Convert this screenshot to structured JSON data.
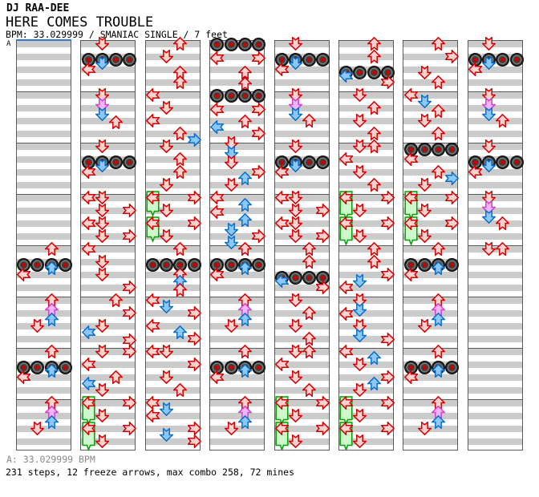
{
  "header": {
    "artist": "DJ RAA-DEE",
    "song_title": "HERE COMES TROUBLE",
    "info_line": "BPM: 33.029999 / SMANIAC SINGLE / 7 feet"
  },
  "footer": {
    "bpm_line": "A: 33.029999 BPM",
    "stats_line": "231 steps, 12 freeze arrows, max combo 258, 72 mines"
  },
  "colors": {
    "stripe_gray": "#cbcbcb",
    "measure_border": "#5a5a5a",
    "section_marker_blue": "#3377cc",
    "note_red_border": "#d40000",
    "note_red_fill": "#ffd2d2",
    "note_blue_border": "#0a6ecc",
    "note_blue_fill": "#8cc8f8",
    "note_purple_border": "#cc44cc",
    "note_purple_fill": "#f4b4f8",
    "freeze_border": "#00a000",
    "freeze_fill": "#ccf8cc",
    "mine_center_red": "#c40000"
  },
  "chart_data": {
    "type": "ddr-step-chart",
    "section_label": "A",
    "lanes": [
      "left",
      "down",
      "up",
      "right"
    ],
    "rows_per_measure": 8,
    "measures_per_column": 8,
    "note_kinds": {
      "r": "red-note",
      "b": "blue-note",
      "p": "purple-note",
      "m": "mine-row-all-4-lanes",
      "f": "freeze-arrow-with-length-in-rows"
    },
    "columns": [
      [
        [
          32.5,
          2,
          "r"
        ],
        [
          35,
          -1,
          "m"
        ],
        [
          35.5,
          2,
          "b"
        ],
        [
          36.5,
          0,
          "r"
        ],
        [
          40.5,
          2,
          "r"
        ],
        [
          42,
          2,
          "p"
        ],
        [
          43.5,
          2,
          "b"
        ],
        [
          44.5,
          1,
          "r"
        ],
        [
          48.5,
          2,
          "r"
        ],
        [
          51,
          -1,
          "m"
        ],
        [
          51.5,
          2,
          "b"
        ],
        [
          52.5,
          0,
          "r"
        ],
        [
          56.5,
          2,
          "r"
        ],
        [
          58,
          2,
          "p"
        ],
        [
          59.5,
          2,
          "b"
        ],
        [
          60.5,
          1,
          "r"
        ]
      ],
      [
        [
          0.5,
          1,
          "r"
        ],
        [
          3,
          -1,
          "m"
        ],
        [
          3.5,
          1,
          "b"
        ],
        [
          4.5,
          0,
          "r"
        ],
        [
          8.5,
          1,
          "r"
        ],
        [
          10,
          1,
          "p"
        ],
        [
          11.5,
          1,
          "b"
        ],
        [
          12.8,
          2,
          "r"
        ],
        [
          16.5,
          1,
          "r"
        ],
        [
          19,
          -1,
          "m"
        ],
        [
          19.5,
          1,
          "b"
        ],
        [
          20.5,
          0,
          "r"
        ],
        [
          24.5,
          0,
          "r"
        ],
        [
          24.5,
          1,
          "r"
        ],
        [
          26.5,
          1,
          "r"
        ],
        [
          26.5,
          3,
          "r"
        ],
        [
          28.5,
          0,
          "r"
        ],
        [
          28.5,
          1,
          "r"
        ],
        [
          30.5,
          1,
          "r"
        ],
        [
          30.5,
          3,
          "r"
        ],
        [
          32.5,
          0,
          "r"
        ],
        [
          34.5,
          1,
          "r"
        ],
        [
          36.5,
          1,
          "r"
        ],
        [
          38.5,
          3,
          "r"
        ],
        [
          40.5,
          2,
          "r"
        ],
        [
          42.5,
          3,
          "r"
        ],
        [
          44.5,
          1,
          "r"
        ],
        [
          45.5,
          0,
          "b"
        ],
        [
          46.8,
          3,
          "r"
        ],
        [
          48.5,
          1,
          "r"
        ],
        [
          48.5,
          3,
          "r"
        ],
        [
          50.5,
          0,
          "r"
        ],
        [
          52.5,
          2,
          "r"
        ],
        [
          53.5,
          0,
          "b"
        ],
        [
          54.5,
          1,
          "r"
        ],
        [
          56.5,
          0,
          "f",
          3
        ],
        [
          56.5,
          3,
          "r"
        ],
        [
          58.5,
          1,
          "r"
        ],
        [
          60.5,
          0,
          "f",
          3
        ],
        [
          60.5,
          3,
          "r"
        ],
        [
          62.5,
          1,
          "r"
        ]
      ],
      [
        [
          0.5,
          2,
          "r"
        ],
        [
          2.5,
          1,
          "r"
        ],
        [
          5,
          2,
          "r"
        ],
        [
          6.5,
          2,
          "r"
        ],
        [
          8.5,
          0,
          "r"
        ],
        [
          10.5,
          1,
          "r"
        ],
        [
          12.5,
          0,
          "r"
        ],
        [
          14.5,
          2,
          "r"
        ],
        [
          15.5,
          3,
          "b"
        ],
        [
          16.5,
          1,
          "r"
        ],
        [
          18.5,
          2,
          "r"
        ],
        [
          20.5,
          2,
          "r"
        ],
        [
          22.5,
          1,
          "r"
        ],
        [
          24.5,
          0,
          "f",
          2.5
        ],
        [
          24.5,
          3,
          "r"
        ],
        [
          26.5,
          1,
          "r"
        ],
        [
          28.5,
          0,
          "f",
          2.5
        ],
        [
          28.5,
          3,
          "r"
        ],
        [
          30.5,
          1,
          "r"
        ],
        [
          32.5,
          2,
          "r"
        ],
        [
          35,
          -1,
          "m"
        ],
        [
          36.5,
          2,
          "r"
        ],
        [
          37.7,
          2,
          "b"
        ],
        [
          38.9,
          2,
          "r"
        ],
        [
          40.5,
          0,
          "r"
        ],
        [
          41.5,
          1,
          "b"
        ],
        [
          42.5,
          3,
          "r"
        ],
        [
          44.5,
          0,
          "r"
        ],
        [
          45.5,
          2,
          "b"
        ],
        [
          46.5,
          3,
          "r"
        ],
        [
          48.5,
          0,
          "r"
        ],
        [
          48.5,
          1,
          "r"
        ],
        [
          50.5,
          3,
          "r"
        ],
        [
          52.5,
          1,
          "r"
        ],
        [
          54.5,
          2,
          "r"
        ],
        [
          56.5,
          0,
          "r"
        ],
        [
          57.5,
          1,
          "b"
        ],
        [
          58.5,
          0,
          "r"
        ],
        [
          60.5,
          3,
          "r"
        ],
        [
          61.5,
          1,
          "b"
        ],
        [
          62.5,
          3,
          "r"
        ]
      ],
      [
        [
          0.7,
          -1,
          "m"
        ],
        [
          2.8,
          0,
          "r"
        ],
        [
          2.8,
          3,
          "r"
        ],
        [
          5,
          2,
          "r"
        ],
        [
          6.8,
          2,
          "r"
        ],
        [
          8.7,
          -1,
          "m"
        ],
        [
          10.8,
          0,
          "r"
        ],
        [
          10.8,
          3,
          "r"
        ],
        [
          12.7,
          2,
          "r"
        ],
        [
          13.6,
          0,
          "b"
        ],
        [
          14.5,
          3,
          "r"
        ],
        [
          16,
          1,
          "r"
        ],
        [
          17.5,
          1,
          "b"
        ],
        [
          19,
          1,
          "r"
        ],
        [
          20.5,
          3,
          "r"
        ],
        [
          21.5,
          2,
          "b"
        ],
        [
          22.6,
          1,
          "r"
        ],
        [
          24.5,
          0,
          "r"
        ],
        [
          25.7,
          2,
          "b"
        ],
        [
          26.8,
          0,
          "r"
        ],
        [
          28,
          2,
          "b"
        ],
        [
          29.5,
          1,
          "b"
        ],
        [
          30.5,
          3,
          "r"
        ],
        [
          31.5,
          1,
          "b"
        ],
        [
          32.5,
          2,
          "r"
        ],
        [
          35,
          -1,
          "m"
        ],
        [
          35.5,
          2,
          "b"
        ],
        [
          36.5,
          0,
          "r"
        ],
        [
          40.5,
          2,
          "r"
        ],
        [
          42,
          2,
          "p"
        ],
        [
          43.5,
          2,
          "b"
        ],
        [
          44.5,
          1,
          "r"
        ],
        [
          48.5,
          2,
          "r"
        ],
        [
          51,
          -1,
          "m"
        ],
        [
          51.5,
          2,
          "b"
        ],
        [
          52.5,
          0,
          "r"
        ],
        [
          56.5,
          2,
          "r"
        ],
        [
          58,
          2,
          "p"
        ],
        [
          59.5,
          2,
          "b"
        ],
        [
          60.5,
          1,
          "r"
        ]
      ],
      [
        [
          0.5,
          1,
          "r"
        ],
        [
          3,
          -1,
          "m"
        ],
        [
          3.5,
          1,
          "b"
        ],
        [
          4.5,
          0,
          "r"
        ],
        [
          8.5,
          1,
          "r"
        ],
        [
          10,
          1,
          "p"
        ],
        [
          11.5,
          1,
          "b"
        ],
        [
          12.5,
          2,
          "r"
        ],
        [
          16.5,
          1,
          "r"
        ],
        [
          19,
          -1,
          "m"
        ],
        [
          19.5,
          1,
          "b"
        ],
        [
          20.5,
          0,
          "r"
        ],
        [
          24.5,
          0,
          "r"
        ],
        [
          24.5,
          1,
          "r"
        ],
        [
          26.5,
          1,
          "r"
        ],
        [
          26.5,
          3,
          "r"
        ],
        [
          28.5,
          0,
          "r"
        ],
        [
          28.5,
          1,
          "r"
        ],
        [
          30.5,
          1,
          "r"
        ],
        [
          30.5,
          3,
          "r"
        ],
        [
          32.5,
          2,
          "r"
        ],
        [
          34.5,
          2,
          "r"
        ],
        [
          37,
          -1,
          "m"
        ],
        [
          37.5,
          0,
          "b"
        ],
        [
          38.5,
          3,
          "r"
        ],
        [
          40.5,
          1,
          "r"
        ],
        [
          42.5,
          2,
          "r"
        ],
        [
          44.5,
          1,
          "r"
        ],
        [
          46.5,
          2,
          "r"
        ],
        [
          48.5,
          1,
          "r"
        ],
        [
          48.5,
          2,
          "r"
        ],
        [
          50.5,
          0,
          "r"
        ],
        [
          52.5,
          1,
          "r"
        ],
        [
          54.5,
          2,
          "r"
        ],
        [
          56.5,
          0,
          "f",
          3
        ],
        [
          56.5,
          3,
          "r"
        ],
        [
          58.5,
          1,
          "r"
        ],
        [
          60.5,
          0,
          "f",
          3
        ],
        [
          60.5,
          3,
          "r"
        ],
        [
          62.5,
          1,
          "r"
        ]
      ],
      [
        [
          0.5,
          2,
          "r"
        ],
        [
          2.5,
          2,
          "r"
        ],
        [
          5,
          -1,
          "m"
        ],
        [
          5.5,
          0,
          "b"
        ],
        [
          6.5,
          3,
          "r"
        ],
        [
          8.5,
          1,
          "r"
        ],
        [
          10.5,
          2,
          "r"
        ],
        [
          12.5,
          1,
          "r"
        ],
        [
          14.5,
          2,
          "r"
        ],
        [
          16.5,
          1,
          "r"
        ],
        [
          16.5,
          2,
          "r"
        ],
        [
          18.5,
          0,
          "r"
        ],
        [
          20.5,
          1,
          "r"
        ],
        [
          22.5,
          2,
          "r"
        ],
        [
          24.5,
          0,
          "f",
          3
        ],
        [
          24.5,
          3,
          "r"
        ],
        [
          26.5,
          1,
          "r"
        ],
        [
          28.5,
          0,
          "f",
          3
        ],
        [
          28.5,
          3,
          "r"
        ],
        [
          30.5,
          1,
          "r"
        ],
        [
          32.5,
          2,
          "r"
        ],
        [
          34.5,
          2,
          "r"
        ],
        [
          36.5,
          3,
          "r"
        ],
        [
          37.5,
          1,
          "b"
        ],
        [
          38.5,
          0,
          "r"
        ],
        [
          40.5,
          1,
          "r"
        ],
        [
          42,
          1,
          "b"
        ],
        [
          42.7,
          0,
          "r"
        ],
        [
          44.5,
          1,
          "r"
        ],
        [
          46,
          1,
          "b"
        ],
        [
          46.7,
          3,
          "r"
        ],
        [
          48.5,
          0,
          "r"
        ],
        [
          49.5,
          2,
          "b"
        ],
        [
          50.5,
          1,
          "r"
        ],
        [
          52.5,
          3,
          "r"
        ],
        [
          53.5,
          2,
          "b"
        ],
        [
          54.5,
          1,
          "r"
        ],
        [
          56.5,
          0,
          "f",
          3
        ],
        [
          56.5,
          3,
          "r"
        ],
        [
          58.5,
          1,
          "r"
        ],
        [
          60.5,
          0,
          "f",
          3
        ],
        [
          60.5,
          3,
          "r"
        ],
        [
          62.5,
          1,
          "r"
        ]
      ],
      [
        [
          0.5,
          2,
          "r"
        ],
        [
          2.5,
          3,
          "r"
        ],
        [
          5,
          1,
          "r"
        ],
        [
          6.5,
          2,
          "r"
        ],
        [
          8.5,
          0,
          "r"
        ],
        [
          9.5,
          1,
          "b"
        ],
        [
          11,
          2,
          "r"
        ],
        [
          12.5,
          1,
          "r"
        ],
        [
          14.5,
          2,
          "r"
        ],
        [
          17,
          -1,
          "m"
        ],
        [
          18.5,
          0,
          "r"
        ],
        [
          20.5,
          2,
          "r"
        ],
        [
          21.5,
          3,
          "b"
        ],
        [
          22.5,
          1,
          "r"
        ],
        [
          24.5,
          0,
          "f",
          3
        ],
        [
          24.5,
          3,
          "r"
        ],
        [
          26.5,
          1,
          "r"
        ],
        [
          28.5,
          0,
          "f",
          3
        ],
        [
          28.5,
          3,
          "r"
        ],
        [
          30.5,
          1,
          "r"
        ],
        [
          32.5,
          2,
          "r"
        ],
        [
          35,
          -1,
          "m"
        ],
        [
          35.5,
          2,
          "b"
        ],
        [
          36.5,
          0,
          "r"
        ],
        [
          40.5,
          2,
          "r"
        ],
        [
          42,
          2,
          "p"
        ],
        [
          43.5,
          2,
          "b"
        ],
        [
          44.5,
          1,
          "r"
        ],
        [
          48.5,
          2,
          "r"
        ],
        [
          51,
          -1,
          "m"
        ],
        [
          51.5,
          2,
          "b"
        ],
        [
          52.5,
          0,
          "r"
        ],
        [
          56.5,
          2,
          "r"
        ],
        [
          58,
          2,
          "p"
        ],
        [
          59.5,
          2,
          "b"
        ],
        [
          60.5,
          1,
          "r"
        ]
      ],
      [
        [
          0.5,
          1,
          "r"
        ],
        [
          3,
          -1,
          "m"
        ],
        [
          3.5,
          1,
          "b"
        ],
        [
          4.5,
          0,
          "r"
        ],
        [
          8.5,
          1,
          "r"
        ],
        [
          10,
          1,
          "p"
        ],
        [
          11.5,
          1,
          "b"
        ],
        [
          12.5,
          2,
          "r"
        ],
        [
          16.5,
          1,
          "r"
        ],
        [
          19,
          -1,
          "m"
        ],
        [
          19.5,
          1,
          "b"
        ],
        [
          20.5,
          0,
          "r"
        ],
        [
          24.5,
          1,
          "r"
        ],
        [
          26,
          1,
          "p"
        ],
        [
          27.5,
          1,
          "b"
        ],
        [
          28.5,
          2,
          "r"
        ],
        [
          32.5,
          1,
          "r"
        ],
        [
          32.5,
          2,
          "r"
        ]
      ]
    ]
  }
}
